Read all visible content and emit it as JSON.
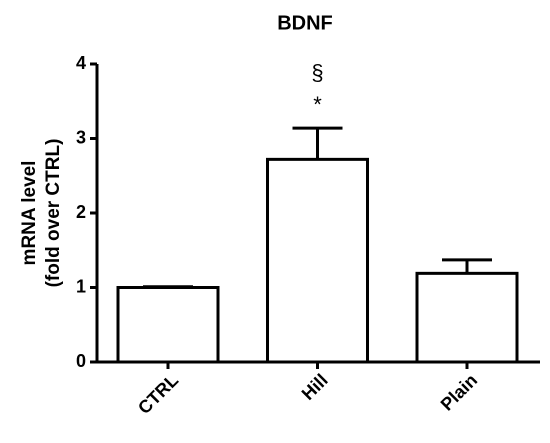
{
  "chart_data": {
    "type": "bar",
    "title": "BDNF",
    "ylabel": [
      "mRNA level",
      "(fold over CTRL)"
    ],
    "categories": [
      "CTRL",
      "Hill",
      "Plain"
    ],
    "values": [
      1.0,
      2.72,
      1.19
    ],
    "errors": [
      0.01,
      0.42,
      0.18
    ],
    "color": "#ffffff",
    "edgecolor": "#000000",
    "annotations": [
      "§",
      "*"
    ],
    "ylim": [
      0,
      4
    ],
    "yticks": [
      0,
      1,
      2,
      3,
      4
    ],
    "grid": false
  }
}
